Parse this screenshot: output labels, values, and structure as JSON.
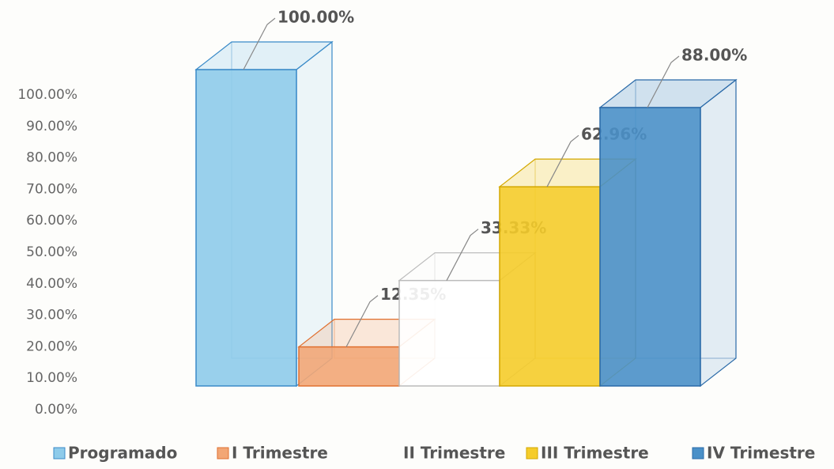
{
  "chart_data": {
    "type": "bar",
    "categories": [
      null
    ],
    "series": [
      {
        "name": "Programado",
        "color": "#8ecbea",
        "values": [
          100
        ],
        "value_labels": [
          "100.00%"
        ]
      },
      {
        "name": "I Trimestre",
        "color": "#f2a675",
        "values": [
          12.35
        ],
        "value_labels": [
          "12.35%"
        ]
      },
      {
        "name": "II Trimestre",
        "color": "#ffffff",
        "values": [
          33.33
        ],
        "value_labels": [
          "33.33%"
        ]
      },
      {
        "name": "III Trimestre",
        "color": "#f5cc2a",
        "values": [
          62.96
        ],
        "value_labels": [
          "62.96%"
        ]
      },
      {
        "name": "IV Trimestre",
        "color": "#4a90c8",
        "values": [
          88
        ],
        "value_labels": [
          "88.00%"
        ]
      }
    ],
    "ylim": [
      0,
      100
    ],
    "yticks": [
      {
        "value": 0,
        "label": "0.00%"
      },
      {
        "value": 10,
        "label": "10.00%"
      },
      {
        "value": 20,
        "label": "20.00%"
      },
      {
        "value": 30,
        "label": "30.00%"
      },
      {
        "value": 40,
        "label": "40.00%"
      },
      {
        "value": 50,
        "label": "50.00%"
      },
      {
        "value": 60,
        "label": "60.00%"
      },
      {
        "value": 70,
        "label": "70.00%"
      },
      {
        "value": 80,
        "label": "80.00%"
      },
      {
        "value": 90,
        "label": "90.00%"
      },
      {
        "value": 100,
        "label": "100.00%"
      }
    ],
    "grid": false,
    "legend": "bottom"
  }
}
